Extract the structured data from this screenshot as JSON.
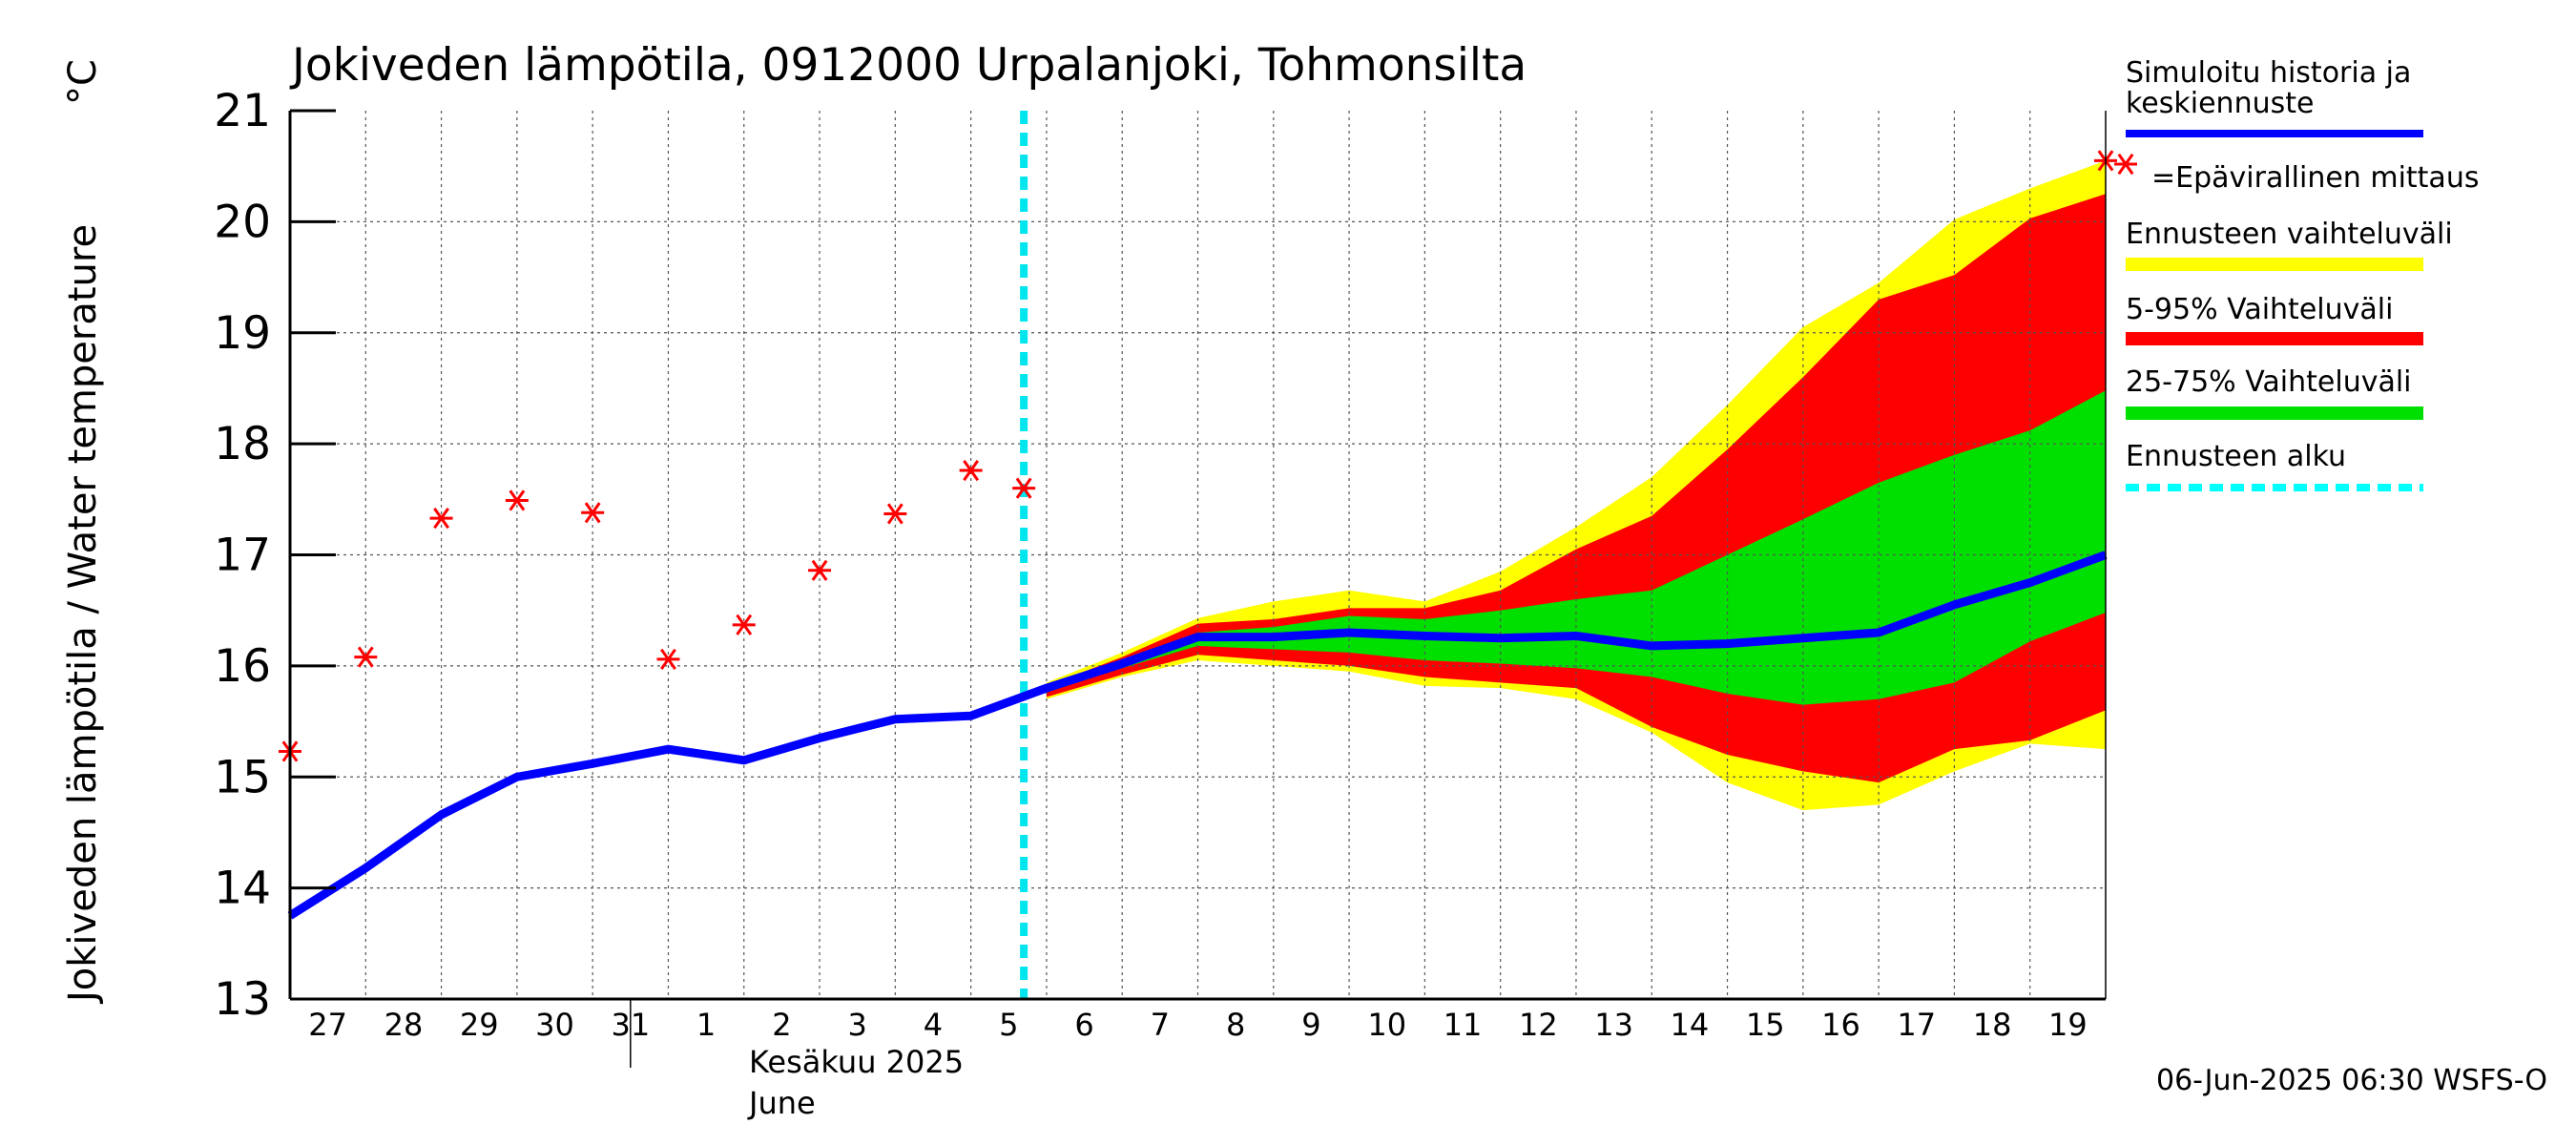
{
  "chart_data": {
    "type": "line",
    "title": "Jokiveden lämpötila, 0912000 Urpalanjoki, Tohmonsilta",
    "ylabel": "Jokiveden lämpötila / Water temperature",
    "yunit": "°C",
    "ylim": [
      13,
      21
    ],
    "yticks": [
      "13",
      "14",
      "15",
      "16",
      "17",
      "18",
      "19",
      "20",
      "21"
    ],
    "xlim": [
      "2025-05-27",
      "2025-06-20"
    ],
    "xticks": [
      "27",
      "28",
      "29",
      "30",
      "31",
      "1",
      "2",
      "3",
      "4",
      "5",
      "6",
      "7",
      "8",
      "9",
      "10",
      "11",
      "12",
      "13",
      "14",
      "15",
      "16",
      "17",
      "18",
      "19"
    ],
    "month_label_fi": "Kesäkuu  2025",
    "month_label_en": "June",
    "grid": true,
    "legend_position": "right",
    "forecast_start": "2025-06-06",
    "x": [
      "2025-05-27",
      "2025-05-28",
      "2025-05-29",
      "2025-05-30",
      "2025-05-31",
      "2025-06-01",
      "2025-06-02",
      "2025-06-03",
      "2025-06-04",
      "2025-06-05",
      "2025-06-06",
      "2025-06-07",
      "2025-06-08",
      "2025-06-09",
      "2025-06-10",
      "2025-06-11",
      "2025-06-12",
      "2025-06-13",
      "2025-06-14",
      "2025-06-15",
      "2025-06-16",
      "2025-06-17",
      "2025-06-18",
      "2025-06-19",
      "2025-06-20"
    ],
    "series": [
      {
        "name": "Simuloitu historia ja keskiennuste",
        "color": "#0000ff",
        "values": [
          13.75,
          14.18,
          14.66,
          15.0,
          15.12,
          15.25,
          15.15,
          15.35,
          15.52,
          15.55,
          15.8,
          16.02,
          16.26,
          16.26,
          16.3,
          16.27,
          16.25,
          16.27,
          16.18,
          16.2,
          16.25,
          16.3,
          16.55,
          16.75,
          17.0
        ]
      },
      {
        "name": "=Epävirallinen mittaus",
        "color": "#ff0000",
        "marker": "asterisk",
        "x": [
          "2025-05-27",
          "2025-05-28",
          "2025-05-29",
          "2025-05-30",
          "2025-05-31",
          "2025-06-01",
          "2025-06-02",
          "2025-06-03",
          "2025-06-04",
          "2025-06-05",
          "2025-06-06",
          "2025-06-20"
        ],
        "values": [
          15.23,
          16.08,
          17.33,
          17.49,
          17.38,
          16.06,
          16.37,
          16.86,
          17.37,
          17.76,
          17.6,
          20.55
        ]
      }
    ],
    "bands": [
      {
        "name": "Ennusteen vaihteluväli",
        "color": "#ffff00",
        "x": [
          "2025-06-06",
          "2025-06-07",
          "2025-06-08",
          "2025-06-09",
          "2025-06-10",
          "2025-06-11",
          "2025-06-12",
          "2025-06-13",
          "2025-06-14",
          "2025-06-15",
          "2025-06-16",
          "2025-06-17",
          "2025-06-18",
          "2025-06-19",
          "2025-06-20"
        ],
        "upper": [
          15.85,
          16.12,
          16.43,
          16.58,
          16.68,
          16.58,
          16.85,
          17.25,
          17.7,
          18.35,
          19.05,
          19.45,
          20.02,
          20.3,
          20.55
        ],
        "lower": [
          15.7,
          15.9,
          16.05,
          16.0,
          15.95,
          15.82,
          15.8,
          15.7,
          15.4,
          14.95,
          14.7,
          14.75,
          15.05,
          15.3,
          15.25
        ]
      },
      {
        "name": "5-95% Vaihteluväli",
        "color": "#ff0000",
        "x": [
          "2025-06-06",
          "2025-06-07",
          "2025-06-08",
          "2025-06-09",
          "2025-06-10",
          "2025-06-11",
          "2025-06-12",
          "2025-06-13",
          "2025-06-14",
          "2025-06-15",
          "2025-06-16",
          "2025-06-17",
          "2025-06-18",
          "2025-06-19",
          "2025-06-20"
        ],
        "upper": [
          15.82,
          16.08,
          16.38,
          16.42,
          16.52,
          16.52,
          16.68,
          17.05,
          17.35,
          17.95,
          18.6,
          19.3,
          19.52,
          20.03,
          20.25
        ],
        "lower": [
          15.72,
          15.92,
          16.1,
          16.05,
          16.0,
          15.9,
          15.85,
          15.8,
          15.45,
          15.2,
          15.05,
          14.95,
          15.25,
          15.33,
          15.6
        ]
      },
      {
        "name": "25-75% Vaihteluväli",
        "color": "#00e000",
        "x": [
          "2025-06-06",
          "2025-06-07",
          "2025-06-08",
          "2025-06-09",
          "2025-06-10",
          "2025-06-11",
          "2025-06-12",
          "2025-06-13",
          "2025-06-14",
          "2025-06-15",
          "2025-06-16",
          "2025-06-17",
          "2025-06-18",
          "2025-06-19",
          "2025-06-20"
        ],
        "upper": [
          15.8,
          16.05,
          16.3,
          16.35,
          16.45,
          16.42,
          16.5,
          16.6,
          16.68,
          17.0,
          17.32,
          17.65,
          17.9,
          18.12,
          18.48
        ],
        "lower": [
          15.76,
          15.98,
          16.18,
          16.15,
          16.12,
          16.05,
          16.02,
          15.98,
          15.9,
          15.75,
          15.65,
          15.7,
          15.85,
          16.22,
          16.48
        ]
      }
    ],
    "legend": [
      {
        "label": "Simuloitu historia ja keskiennuste",
        "color": "#0000ff",
        "style": "line"
      },
      {
        "label": "=Epävirallinen mittaus",
        "color": "#ff0000",
        "style": "asterisk"
      },
      {
        "label": "Ennusteen vaihteluväli",
        "color": "#ffff00",
        "style": "line"
      },
      {
        "label": "5-95% Vaihteluväli",
        "color": "#ff0000",
        "style": "line"
      },
      {
        "label": "25-75% Vaihteluväli",
        "color": "#00e000",
        "style": "line"
      },
      {
        "label": "Ennusteen alku",
        "color": "#00ffff",
        "style": "dashed"
      }
    ],
    "footer": "06-Jun-2025 06:30 WSFS-O"
  }
}
